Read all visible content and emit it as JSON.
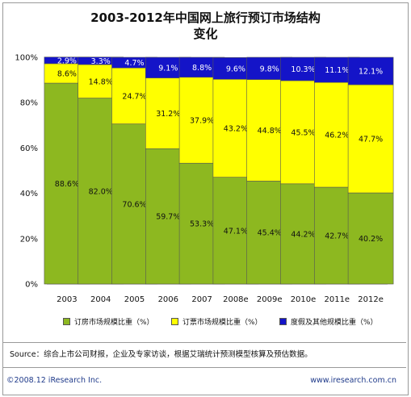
{
  "chart_data": {
    "type": "bar",
    "stacked": true,
    "title_line1": "2003-2012年中国网上旅行预订市场结构",
    "title_line2": "变化",
    "categories": [
      "2003",
      "2004",
      "2005",
      "2006",
      "2007",
      "2008e",
      "2009e",
      "2010e",
      "2011e",
      "2012e"
    ],
    "series": [
      {
        "name": "订房市场规模比重（%）",
        "color": "#8db820",
        "values": [
          88.6,
          82.0,
          70.6,
          59.7,
          53.3,
          47.1,
          45.4,
          44.2,
          42.7,
          40.2
        ],
        "labels": [
          "88.6%",
          "82.0%",
          "70.6%",
          "59.7%",
          "53.3%",
          "47.1%",
          "45.4%",
          "44.2%",
          "42.7%",
          "40.2%"
        ]
      },
      {
        "name": "订票市场规模比重（%）",
        "color": "#ffff00",
        "values": [
          8.6,
          14.8,
          24.7,
          31.2,
          37.9,
          43.2,
          44.8,
          45.5,
          46.2,
          47.7
        ],
        "labels": [
          "8.6%",
          "14.8%",
          "24.7%",
          "31.2%",
          "37.9%",
          "43.2%",
          "44.8%",
          "45.5%",
          "46.2%",
          "47.7%"
        ]
      },
      {
        "name": "度假及其他规模比重（%）",
        "color": "#1414c8",
        "values": [
          2.9,
          3.3,
          4.7,
          9.1,
          8.8,
          9.6,
          9.8,
          10.3,
          11.1,
          12.1
        ],
        "labels": [
          "2.9%",
          "3.3%",
          "4.7%",
          "9.1%",
          "8.8%",
          "9.6%",
          "9.8%",
          "10.3%",
          "11.1%",
          "12.1%"
        ]
      }
    ],
    "ylim": [
      0,
      100
    ],
    "yticks": [
      "0%",
      "20%",
      "40%",
      "60%",
      "80%",
      "100%"
    ],
    "grid": false,
    "legend_position": "bottom"
  },
  "source": "Source：综合上市公司财报，企业及专家访谈，根据艾瑞统计预测模型核算及预估数据。",
  "footer": {
    "copyright": "©2008.12 iResearch Inc.",
    "website": "www.iresearch.com.cn"
  }
}
